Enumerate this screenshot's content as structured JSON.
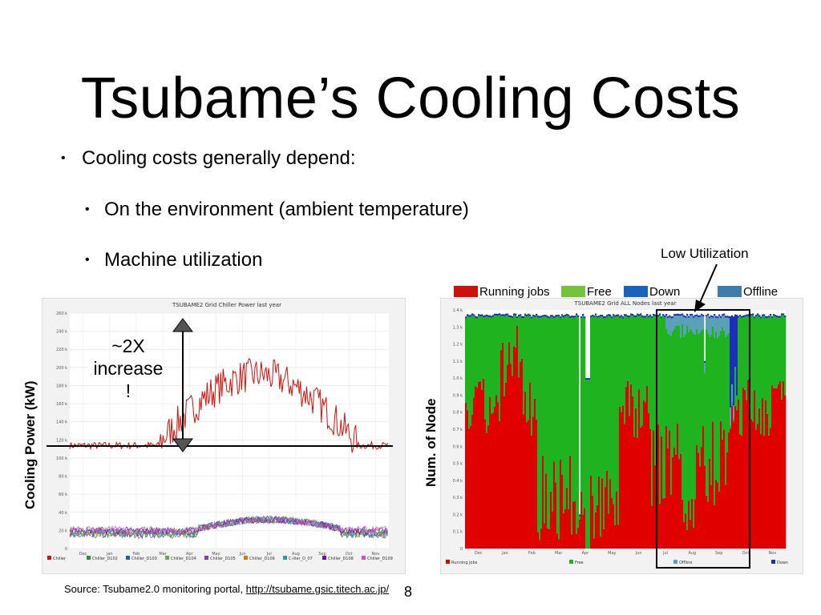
{
  "slide": {
    "title": "Tsubame’s Cooling Costs",
    "bullet_main": "Cooling costs generally depend:",
    "bullet_sub1": "On the environment (ambient temperature)",
    "bullet_sub2": "Machine utilization",
    "low_util_label": "Low Utilization",
    "increase_label_1": "~2X",
    "increase_label_2": "increase",
    "increase_label_3": "!",
    "y_label_left": "Cooling Power (kW)",
    "y_label_right": "Num. of Node",
    "source_prefix": "Source: Tsubame2.0 monitoring portal, ",
    "source_link": "http://tsubame.gsic.titech.ac.jp/",
    "page_number": "8"
  },
  "legend": [
    {
      "label": "Running jobs",
      "color": "#d0110a"
    },
    {
      "label": "Free",
      "color": "#74c43a"
    },
    {
      "label": "Down",
      "color": "#1664c0"
    },
    {
      "label": "Offline",
      "color": "#3b7bb0"
    }
  ],
  "left_chart": {
    "title": "TSUBAME2 Grid Chiller Power last year",
    "months": [
      "Dec",
      "Jan",
      "Feb",
      "Mar",
      "Apr",
      "May",
      "Jun",
      "Jul",
      "Aug",
      "Sep",
      "Oct",
      "Nov"
    ],
    "yticks": [
      "260 k",
      "240 k",
      "220 k",
      "200 k",
      "180 k",
      "160 k",
      "140 k",
      "120 k",
      "100 k",
      "80 k",
      "60 k",
      "40 k",
      "20 k",
      "0"
    ],
    "legend": [
      {
        "label": "Chiller",
        "color": "#d0110a"
      },
      {
        "label": "Chiller_D102",
        "color": "#2d8f3a"
      },
      {
        "label": "Chiller_D103",
        "color": "#1f5fb0"
      },
      {
        "label": "Chiller_D104",
        "color": "#6aa84f"
      },
      {
        "label": "Chiller_D105",
        "color": "#8a3ab9"
      },
      {
        "label": "Chiller_D106",
        "color": "#c77d12"
      },
      {
        "label": "C-iller_D_07",
        "color": "#20a0a0"
      },
      {
        "label": "Chiller_D108",
        "color": "#6a0dad"
      },
      {
        "label": "Chiller_D109",
        "color": "#d44ad4"
      }
    ]
  },
  "right_chart": {
    "title": "TSUBAME2 Grid ALL Nodes last year",
    "months": [
      "Dec",
      "Jan",
      "Feb",
      "Mar",
      "Apr",
      "May",
      "Jun",
      "Jul",
      "Aug",
      "Sep",
      "Oct",
      "Nov"
    ],
    "yticks": [
      "1.4 k",
      "1.3 k",
      "1.2 k",
      "1.1 k",
      "1.0 k",
      "0.9 k",
      "0.8 k",
      "0.7 k",
      "0.6 k",
      "0.5 k",
      "0.4 k",
      "0.3 k",
      "0.2 k",
      "0.1 k",
      "0"
    ],
    "legend": [
      "Running Jobs",
      "Free",
      "Offline",
      "Down"
    ]
  }
}
